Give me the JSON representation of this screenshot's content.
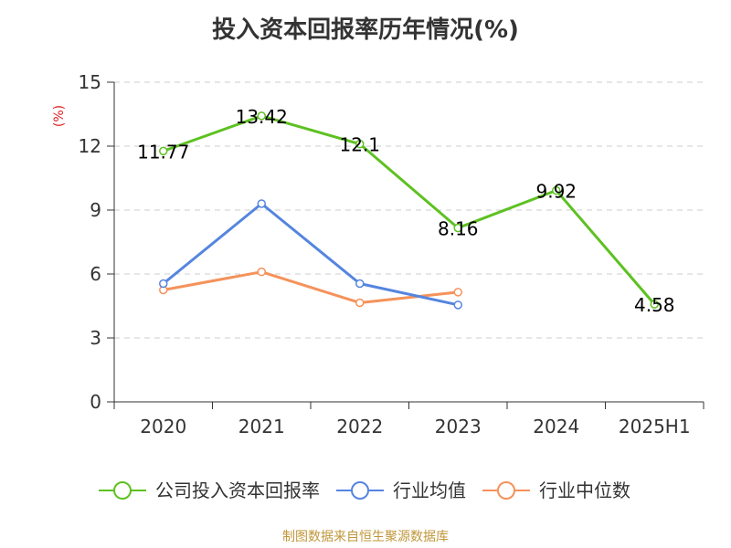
{
  "title": "投入资本回报率历年情况(%)",
  "unit_label": "(%)",
  "source": "制图数据来自恒生聚源数据库",
  "chart_data": {
    "type": "line",
    "title": "投入资本回报率历年情况(%)",
    "categories": [
      "2020",
      "2021",
      "2022",
      "2023",
      "2024",
      "2025H1"
    ],
    "ylim": [
      0,
      15
    ],
    "yticks": [
      0,
      3,
      6,
      9,
      12,
      15
    ],
    "grid": true,
    "legend_position": "bottom",
    "series": [
      {
        "name": "公司投入资本回报率",
        "color": "#5dc121",
        "show_labels": true,
        "values": [
          11.77,
          13.42,
          12.1,
          8.16,
          9.92,
          4.58
        ]
      },
      {
        "name": "行业均值",
        "color": "#5585df",
        "show_labels": false,
        "values": [
          5.55,
          9.3,
          5.55,
          4.55,
          null,
          null
        ]
      },
      {
        "name": "行业中位数",
        "color": "#f5925a",
        "show_labels": false,
        "values": [
          5.25,
          6.1,
          4.65,
          5.15,
          null,
          null
        ]
      }
    ]
  }
}
